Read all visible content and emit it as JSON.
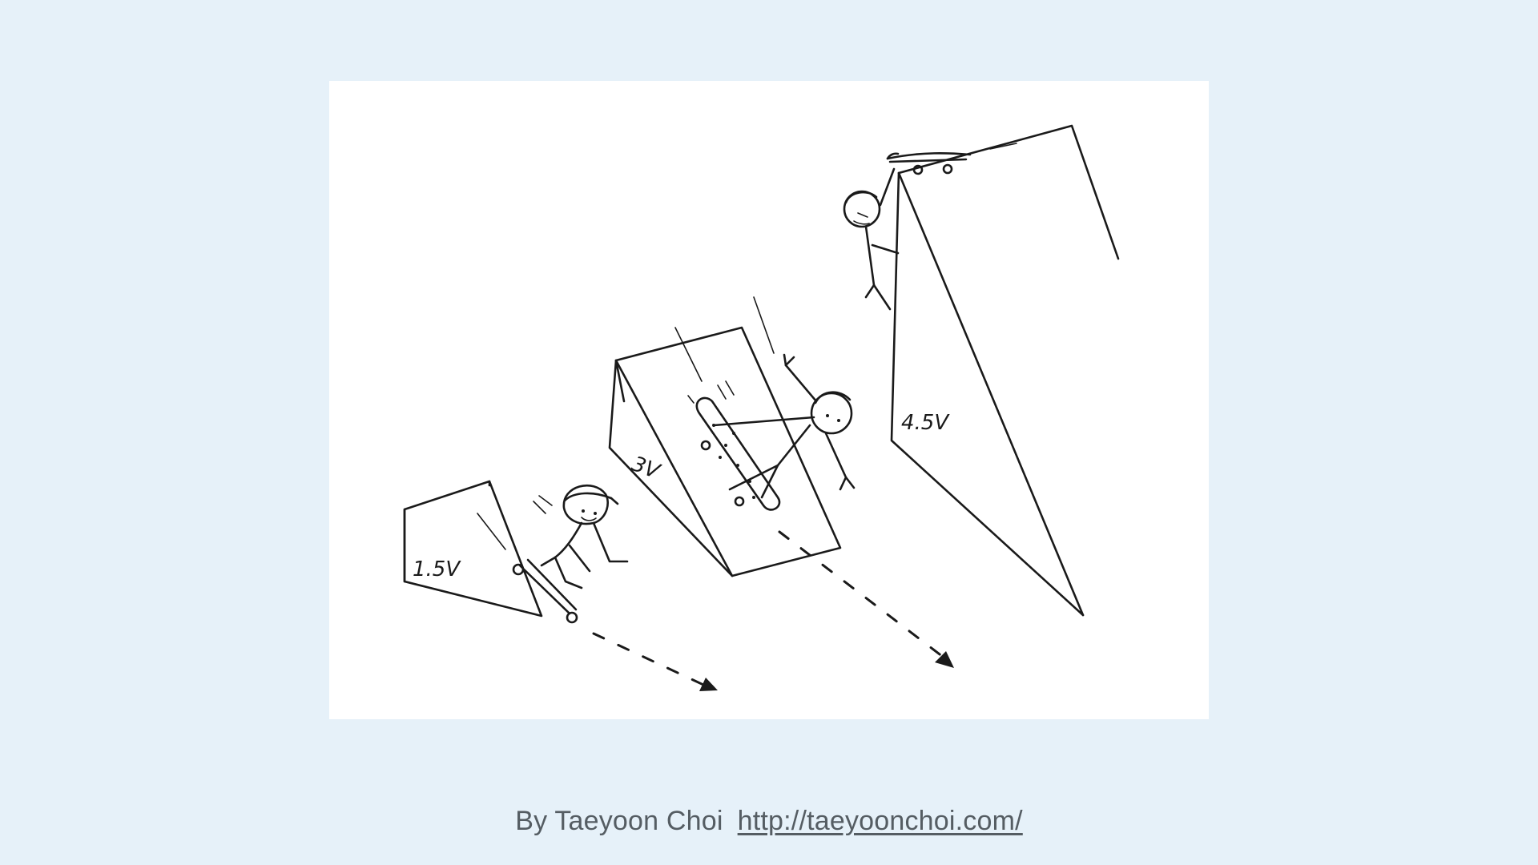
{
  "illustration": {
    "ramps": [
      {
        "label": "1.5V"
      },
      {
        "label": "3V"
      },
      {
        "label": "4.5V"
      }
    ]
  },
  "credit": {
    "author_text": "By Taeyoon Choi",
    "link_text": "http://taeyoonchoi.com/"
  },
  "colors": {
    "background": "#e6f1f9",
    "paper": "#ffffff",
    "ink": "#1a1a1a",
    "credit_text": "#555d63"
  }
}
